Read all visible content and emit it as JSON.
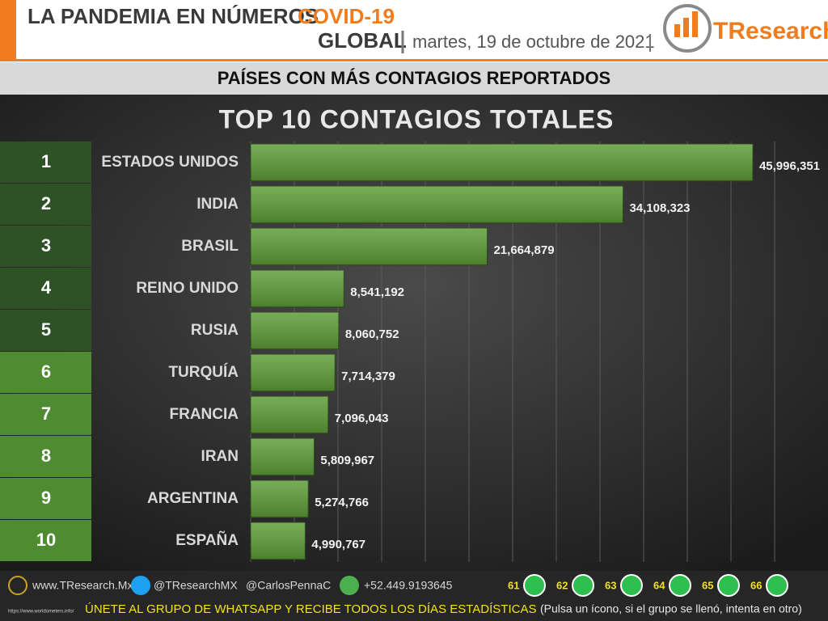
{
  "header": {
    "title": "LA PANDEMIA EN NÚMEROS",
    "highlight": "COVID-19",
    "scope": "GLOBAL",
    "date": "martes, 19 de octubre de 2021",
    "logo": "TResearch"
  },
  "section_title": "PAÍSES CON MÁS CONTAGIOS REPORTADOS",
  "chart_data": {
    "type": "bar",
    "orientation": "horizontal",
    "title": "TOP 10 CONTAGIOS TOTALES",
    "ranks": [
      1,
      2,
      3,
      4,
      5,
      6,
      7,
      8,
      9,
      10
    ],
    "categories": [
      "ESTADOS UNIDOS",
      "INDIA",
      "BRASIL",
      "REINO UNIDO",
      "RUSIA",
      "TURQUÍA",
      "FRANCIA",
      "IRAN",
      "ARGENTINA",
      "ESPAÑA"
    ],
    "values": [
      45996351,
      34108323,
      21664879,
      8541192,
      8060752,
      7714379,
      7096043,
      5809967,
      5274766,
      4990767
    ],
    "value_labels": [
      "45,996,351",
      "34,108,323",
      "21,664,879",
      "8,541,192",
      "8,060,752",
      "7,714,379",
      "7,096,043",
      "5,809,967",
      "5,274,766",
      "4,990,767"
    ],
    "color": "#5e9e37",
    "xlim": [
      0,
      50000000
    ],
    "xticks": [
      0,
      4000000,
      8000000,
      12000000,
      16000000,
      20000000,
      24000000,
      28000000,
      32000000,
      36000000,
      40000000,
      44000000,
      48000000
    ],
    "grid": true
  },
  "footer": {
    "website": "www.TResearch.Mx",
    "twitter": "@TResearchMX",
    "personal": "@CarlosPennaC",
    "phone": "+52.449.9193645",
    "whatsapp_groups": [
      61,
      62,
      63,
      64,
      65,
      66
    ],
    "call_to_action": "ÚNETE AL GRUPO DE WHATSAPP Y RECIBE TODOS LOS DÍAS ESTADÍSTICAS",
    "instructions": "(Pulsa un ícono, si el grupo se llenó, intenta en otro)",
    "source": "https://www.worldometers.info/"
  }
}
